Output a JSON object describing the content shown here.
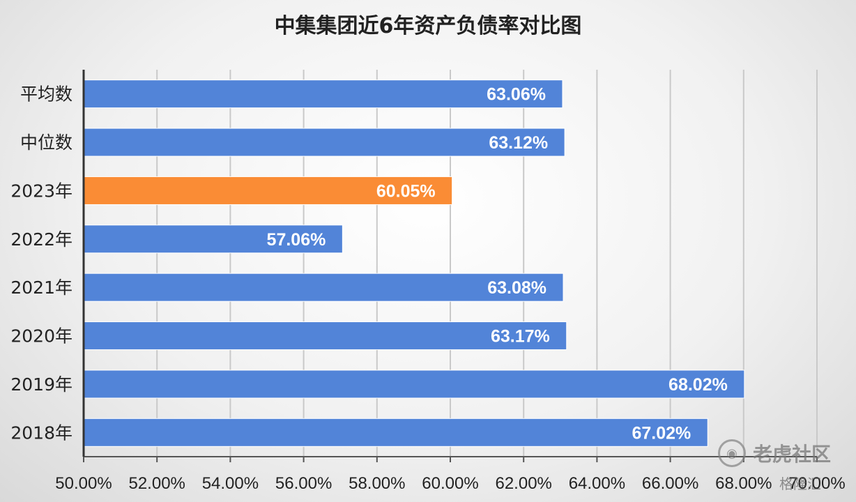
{
  "chart_data": {
    "type": "bar",
    "orientation": "horizontal",
    "title": "中集集团近6年资产负债率对比图",
    "categories": [
      "平均数",
      "中位数",
      "2023年",
      "2022年",
      "2021年",
      "2020年",
      "2019年",
      "2018年"
    ],
    "values": [
      63.06,
      63.12,
      60.05,
      57.06,
      63.08,
      63.17,
      68.02,
      67.02
    ],
    "value_labels": [
      "63.06%",
      "63.12%",
      "60.05%",
      "57.06%",
      "63.08%",
      "63.17%",
      "68.02%",
      "67.02%"
    ],
    "highlight_index": 2,
    "colors": {
      "default": "#5284d8",
      "highlight": "#fa8c35",
      "label": "#ffffff"
    },
    "xlim": [
      50,
      70
    ],
    "x_ticks": [
      "50.00%",
      "52.00%",
      "54.00%",
      "56.00%",
      "58.00%",
      "60.00%",
      "62.00%",
      "64.00%",
      "66.00%",
      "68.00%",
      "70.00%"
    ],
    "grid": true
  },
  "watermark": {
    "icon": "tiger-coin-icon",
    "text": "老虎社区"
  },
  "source_mark": "格隆汇"
}
